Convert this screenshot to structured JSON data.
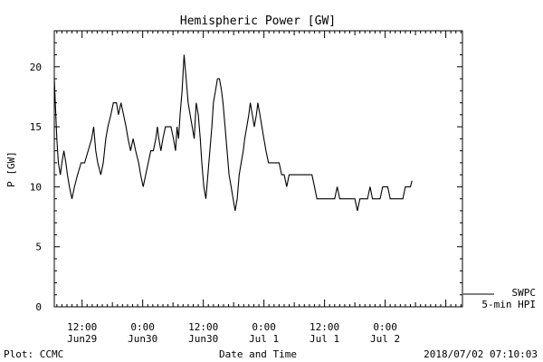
{
  "chart_data": {
    "type": "line",
    "title": "Hemispheric Power [GW]",
    "xlabel": "Date and Time",
    "ylabel": "P [GW]",
    "ylim": [
      0,
      23
    ],
    "xlim": [
      6.5,
      87.3
    ],
    "y_ticks": [
      0,
      5,
      10,
      15,
      20
    ],
    "x_ticks": [
      {
        "x": 12,
        "line1": "12:00",
        "line2": "Jun29"
      },
      {
        "x": 24,
        "line1": "0:00",
        "line2": "Jun30"
      },
      {
        "x": 36,
        "line1": "12:00",
        "line2": "Jun30"
      },
      {
        "x": 48,
        "line1": "0:00",
        "line2": "Jul 1"
      },
      {
        "x": 60,
        "line1": "12:00",
        "line2": "Jul 1"
      },
      {
        "x": 72,
        "line1": "0:00",
        "line2": "Jul 2"
      }
    ],
    "series": [
      {
        "name": "SWPC",
        "values": [
          [
            6.5,
            19
          ],
          [
            6.7,
            17
          ],
          [
            7.0,
            14
          ],
          [
            7.3,
            12
          ],
          [
            7.7,
            11
          ],
          [
            8.0,
            12
          ],
          [
            8.4,
            13
          ],
          [
            8.8,
            12
          ],
          [
            9.1,
            11
          ],
          [
            9.5,
            10
          ],
          [
            10.0,
            9
          ],
          [
            10.5,
            10
          ],
          [
            11.1,
            11
          ],
          [
            11.8,
            12
          ],
          [
            12.5,
            12
          ],
          [
            13.2,
            13
          ],
          [
            13.9,
            14
          ],
          [
            14.3,
            15
          ],
          [
            14.7,
            13
          ],
          [
            15.1,
            12
          ],
          [
            15.7,
            11
          ],
          [
            16.2,
            12
          ],
          [
            16.7,
            14
          ],
          [
            17.1,
            15
          ],
          [
            17.7,
            16
          ],
          [
            18.2,
            17
          ],
          [
            18.8,
            17
          ],
          [
            19.2,
            16
          ],
          [
            19.7,
            17
          ],
          [
            20.2,
            16
          ],
          [
            20.7,
            15
          ],
          [
            21.1,
            14
          ],
          [
            21.6,
            13
          ],
          [
            22.1,
            14
          ],
          [
            22.6,
            13
          ],
          [
            23.2,
            12
          ],
          [
            23.6,
            11
          ],
          [
            24.1,
            10
          ],
          [
            24.6,
            11
          ],
          [
            25.1,
            12
          ],
          [
            25.6,
            13
          ],
          [
            26.1,
            13
          ],
          [
            26.6,
            14
          ],
          [
            26.9,
            15
          ],
          [
            27.2,
            14
          ],
          [
            27.6,
            13
          ],
          [
            28.0,
            14
          ],
          [
            28.5,
            15
          ],
          [
            29.1,
            15
          ],
          [
            29.6,
            15
          ],
          [
            30.1,
            14
          ],
          [
            30.5,
            13
          ],
          [
            30.8,
            15
          ],
          [
            31.1,
            14
          ],
          [
            31.4,
            16
          ],
          [
            31.8,
            18
          ],
          [
            32.2,
            21
          ],
          [
            32.6,
            19
          ],
          [
            33.0,
            17
          ],
          [
            33.4,
            16
          ],
          [
            33.8,
            15
          ],
          [
            34.2,
            14
          ],
          [
            34.6,
            17
          ],
          [
            35.0,
            16
          ],
          [
            35.4,
            14
          ],
          [
            35.7,
            12
          ],
          [
            36.1,
            10
          ],
          [
            36.5,
            9
          ],
          [
            36.9,
            11
          ],
          [
            37.3,
            13
          ],
          [
            37.7,
            15
          ],
          [
            38.0,
            17
          ],
          [
            38.4,
            18
          ],
          [
            38.8,
            19
          ],
          [
            39.2,
            19
          ],
          [
            39.6,
            18
          ],
          [
            39.9,
            17
          ],
          [
            40.3,
            15
          ],
          [
            40.7,
            13
          ],
          [
            41.1,
            11
          ],
          [
            41.5,
            10
          ],
          [
            41.9,
            9
          ],
          [
            42.3,
            8
          ],
          [
            42.7,
            9
          ],
          [
            43.1,
            11
          ],
          [
            43.5,
            12
          ],
          [
            43.9,
            13
          ],
          [
            44.2,
            14
          ],
          [
            44.6,
            15
          ],
          [
            45.0,
            16
          ],
          [
            45.3,
            17
          ],
          [
            45.7,
            16
          ],
          [
            46.1,
            15
          ],
          [
            46.5,
            16
          ],
          [
            46.8,
            17
          ],
          [
            47.2,
            16
          ],
          [
            47.6,
            15
          ],
          [
            48.0,
            14
          ],
          [
            48.4,
            13
          ],
          [
            48.9,
            12
          ],
          [
            50.0,
            12
          ],
          [
            51.0,
            12
          ],
          [
            51.5,
            11
          ],
          [
            52.0,
            11
          ],
          [
            52.5,
            10
          ],
          [
            53.0,
            11
          ],
          [
            54.0,
            11
          ],
          [
            56.0,
            11
          ],
          [
            57.5,
            11
          ],
          [
            58.0,
            10
          ],
          [
            58.5,
            9
          ],
          [
            60.0,
            9
          ],
          [
            62.0,
            9
          ],
          [
            62.5,
            10
          ],
          [
            63.0,
            9
          ],
          [
            64.0,
            9
          ],
          [
            66.0,
            9
          ],
          [
            66.5,
            8
          ],
          [
            67.0,
            9
          ],
          [
            68.5,
            9
          ],
          [
            69.0,
            10
          ],
          [
            69.5,
            9
          ],
          [
            71.0,
            9
          ],
          [
            71.5,
            10
          ],
          [
            72.5,
            10
          ],
          [
            73.0,
            9
          ],
          [
            74.0,
            9
          ],
          [
            75.5,
            9
          ],
          [
            76.0,
            10
          ],
          [
            77.0,
            10
          ],
          [
            77.3,
            10.5
          ]
        ]
      },
      {
        "name": "5-min HPI",
        "values": []
      }
    ],
    "footer_left": "Plot: CCMC",
    "footer_right": "2018/07/02 07:10:03",
    "grid": false,
    "legend": "bottom-right"
  }
}
